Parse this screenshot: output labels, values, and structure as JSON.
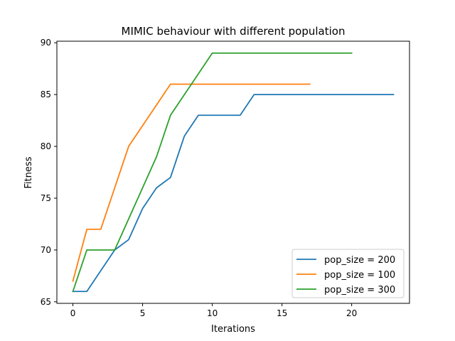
{
  "chart_data": {
    "type": "line",
    "title": "MIMIC behaviour with different population",
    "xlabel": "Iterations",
    "ylabel": "Fitness",
    "xlim": [
      -1.15,
      24.15
    ],
    "ylim": [
      64.85,
      90.15
    ],
    "xticks": [
      0,
      5,
      10,
      15,
      20
    ],
    "yticks": [
      65,
      70,
      75,
      80,
      85,
      90
    ],
    "grid": false,
    "legend_position": "lower-right",
    "series": [
      {
        "name": "pop_size = 200",
        "color": "#1f77b4",
        "x": [
          0,
          1,
          2,
          3,
          4,
          5,
          6,
          7,
          8,
          9,
          10,
          11,
          12,
          13,
          14,
          15,
          16,
          17,
          18,
          19,
          20,
          21,
          22,
          23
        ],
        "y": [
          66,
          66,
          68,
          70,
          71,
          74,
          76,
          77,
          81,
          83,
          83,
          83,
          83,
          85,
          85,
          85,
          85,
          85,
          85,
          85,
          85,
          85,
          85,
          85
        ]
      },
      {
        "name": "pop_size = 100",
        "color": "#ff7f0e",
        "x": [
          0,
          1,
          2,
          3,
          4,
          5,
          6,
          7,
          8,
          9,
          10,
          11,
          12,
          13,
          14,
          15,
          16,
          17
        ],
        "y": [
          67,
          72,
          72,
          76,
          80,
          82,
          84,
          86,
          86,
          86,
          86,
          86,
          86,
          86,
          86,
          86,
          86,
          86
        ]
      },
      {
        "name": "pop_size = 300",
        "color": "#2ca02c",
        "x": [
          0,
          1,
          2,
          3,
          4,
          5,
          6,
          7,
          8,
          9,
          10,
          11,
          12,
          13,
          14,
          15,
          16,
          17,
          18,
          19,
          20
        ],
        "y": [
          66,
          70,
          70,
          70,
          73,
          76,
          79,
          83,
          85,
          87,
          89,
          89,
          89,
          89,
          89,
          89,
          89,
          89,
          89,
          89,
          89
        ]
      }
    ]
  }
}
